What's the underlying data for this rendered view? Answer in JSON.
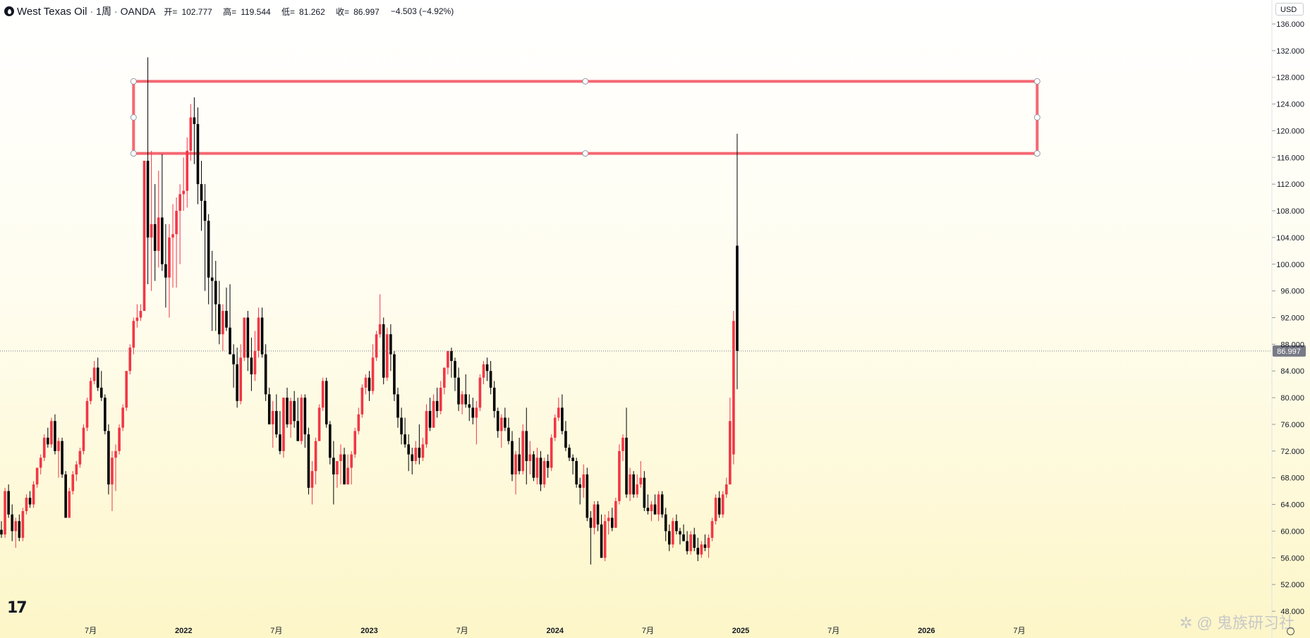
{
  "header": {
    "symbol": "West Texas Oil",
    "interval": "1周",
    "source": "OANDA",
    "open_label": "开=",
    "open": "102.777",
    "high_label": "高=",
    "high": "119.544",
    "low_label": "低=",
    "low": "81.262",
    "close_label": "收=",
    "close": "86.997",
    "change": "−4.503 (−4.92%)"
  },
  "currency": "USD",
  "watermark": "鬼族研习社",
  "brand_logo": "17",
  "colors": {
    "up": "#f23645",
    "down": "#000000",
    "zone": "#f23645",
    "axis_text": "#131722",
    "price_tag": "#787b86"
  },
  "chart_data": {
    "type": "candlestick",
    "interval": "1W",
    "ylim": [
      48,
      138
    ],
    "y_ticks": [
      "136.000",
      "132.000",
      "128.000",
      "124.000",
      "120.000",
      "116.000",
      "112.000",
      "108.000",
      "104.000",
      "100.000",
      "96.000",
      "92.000",
      "88.000",
      "84.000",
      "80.000",
      "76.000",
      "72.000",
      "68.000",
      "64.000",
      "60.000",
      "56.000",
      "52.000",
      "48.000"
    ],
    "x_ticks": [
      {
        "label": "7月",
        "i": 25
      },
      {
        "label": "2022",
        "i": 51
      },
      {
        "label": "7月",
        "i": 77
      },
      {
        "label": "2023",
        "i": 103
      },
      {
        "label": "7月",
        "i": 129
      },
      {
        "label": "2024",
        "i": 155
      },
      {
        "label": "7月",
        "i": 181
      },
      {
        "label": "2025",
        "i": 207
      },
      {
        "label": "7月",
        "i": 233
      },
      {
        "label": "2026",
        "i": 259
      },
      {
        "label": "7月",
        "i": 285
      }
    ],
    "last_price_label": "86.997",
    "last_price": 86.997,
    "resistance_zone": {
      "top": 127.4,
      "bottom": 116.6,
      "start_i": 37,
      "end_i": 290
    },
    "candles": [
      [
        60.2,
        61.5,
        59.0,
        59.5
      ],
      [
        59.5,
        66.5,
        59.0,
        66.0
      ],
      [
        66.0,
        67.0,
        62.0,
        62.5
      ],
      [
        62.5,
        64.0,
        58.5,
        60.0
      ],
      [
        60.0,
        62.0,
        57.5,
        61.5
      ],
      [
        61.5,
        62.5,
        58.5,
        59.0
      ],
      [
        59.0,
        63.5,
        58.5,
        63.0
      ],
      [
        63.0,
        65.5,
        62.5,
        65.0
      ],
      [
        65.0,
        66.0,
        63.5,
        64.0
      ],
      [
        64.0,
        67.5,
        63.5,
        67.0
      ],
      [
        67.0,
        69.5,
        66.5,
        69.5
      ],
      [
        69.5,
        71.5,
        68.5,
        71.0
      ],
      [
        71.0,
        74.5,
        70.5,
        74.0
      ],
      [
        74.0,
        75.5,
        72.5,
        73.0
      ],
      [
        73.0,
        77.0,
        72.5,
        76.5
      ],
      [
        76.5,
        77.5,
        71.5,
        72.0
      ],
      [
        72.0,
        74.0,
        68.0,
        73.5
      ],
      [
        73.5,
        74.0,
        68.0,
        68.5
      ],
      [
        68.5,
        69.0,
        62.0,
        62.0
      ],
      [
        62.0,
        66.5,
        62.0,
        66.0
      ],
      [
        66.0,
        69.0,
        65.5,
        68.5
      ],
      [
        68.5,
        70.5,
        67.5,
        70.0
      ],
      [
        70.0,
        72.5,
        69.5,
        72.0
      ],
      [
        72.0,
        76.0,
        71.5,
        75.5
      ],
      [
        75.5,
        80.0,
        75.0,
        79.5
      ],
      [
        79.5,
        83.0,
        79.0,
        82.5
      ],
      [
        82.5,
        85.5,
        82.0,
        84.5
      ],
      [
        84.5,
        86.0,
        81.0,
        81.5
      ],
      [
        81.5,
        84.0,
        79.5,
        80.0
      ],
      [
        80.0,
        80.5,
        74.5,
        75.0
      ],
      [
        75.0,
        76.0,
        65.5,
        67.0
      ],
      [
        67.0,
        72.0,
        63.0,
        71.0
      ],
      [
        71.0,
        73.0,
        66.0,
        72.0
      ],
      [
        72.0,
        76.0,
        71.5,
        75.5
      ],
      [
        75.5,
        79.0,
        75.0,
        78.5
      ],
      [
        78.5,
        84.0,
        78.0,
        84.0
      ],
      [
        84.0,
        88.0,
        83.5,
        87.5
      ],
      [
        87.5,
        92.0,
        86.5,
        91.5
      ],
      [
        91.5,
        94.0,
        90.5,
        92.0
      ],
      [
        92.0,
        94.0,
        91.5,
        93.0
      ],
      [
        93.0,
        115.5,
        93.0,
        115.5
      ],
      [
        115.5,
        131.0,
        97.0,
        104.0
      ],
      [
        104.0,
        117.0,
        96.0,
        106.0
      ],
      [
        106.0,
        112.0,
        97.5,
        102.0
      ],
      [
        102.0,
        114.0,
        99.5,
        107.0
      ],
      [
        107.0,
        116.5,
        99.0,
        100.0
      ],
      [
        100.0,
        106.0,
        93.5,
        98.0
      ],
      [
        98.0,
        106.0,
        92.0,
        104.0
      ],
      [
        104.0,
        109.0,
        96.5,
        104.5
      ],
      [
        104.5,
        110.0,
        96.5,
        108.0
      ],
      [
        108.0,
        112.0,
        100.0,
        110.5
      ],
      [
        110.5,
        116.0,
        108.0,
        111.0
      ],
      [
        111.0,
        119.0,
        108.5,
        117.0
      ],
      [
        117.0,
        124.0,
        115.5,
        122.0
      ],
      [
        122.0,
        125.0,
        115.0,
        121.0
      ],
      [
        121.0,
        123.5,
        109.0,
        112.0
      ],
      [
        112.0,
        115.5,
        105.0,
        109.5
      ],
      [
        109.5,
        112.0,
        96.0,
        106.5
      ],
      [
        106.5,
        107.5,
        94.0,
        98.0
      ],
      [
        98.0,
        102.0,
        90.0,
        97.5
      ],
      [
        97.5,
        100.5,
        90.0,
        94.0
      ],
      [
        94.0,
        97.5,
        88.0,
        89.5
      ],
      [
        89.5,
        94.0,
        87.0,
        93.0
      ],
      [
        93.0,
        96.5,
        90.0,
        90.5
      ],
      [
        90.5,
        97.0,
        86.5,
        86.5
      ],
      [
        86.5,
        88.0,
        81.5,
        85.0
      ],
      [
        85.0,
        87.5,
        78.5,
        79.5
      ],
      [
        79.5,
        88.0,
        79.0,
        86.0
      ],
      [
        86.0,
        92.0,
        85.5,
        92.0
      ],
      [
        92.0,
        93.0,
        84.0,
        86.0
      ],
      [
        86.0,
        89.0,
        81.0,
        83.5
      ],
      [
        83.5,
        90.0,
        82.5,
        87.0
      ],
      [
        87.0,
        93.5,
        86.0,
        92.0
      ],
      [
        92.0,
        93.5,
        86.0,
        86.5
      ],
      [
        86.5,
        88.0,
        79.5,
        80.5
      ],
      [
        80.5,
        81.5,
        76.0,
        76.0
      ],
      [
        76.0,
        79.5,
        72.5,
        78.0
      ],
      [
        78.0,
        80.5,
        74.0,
        74.5
      ],
      [
        74.5,
        78.0,
        71.5,
        72.0
      ],
      [
        72.0,
        80.0,
        71.0,
        80.0
      ],
      [
        80.0,
        81.5,
        75.5,
        76.0
      ],
      [
        76.0,
        80.0,
        74.0,
        79.5
      ],
      [
        79.5,
        81.0,
        75.5,
        76.5
      ],
      [
        76.5,
        80.0,
        73.5,
        73.5
      ],
      [
        73.5,
        80.5,
        73.0,
        80.0
      ],
      [
        80.0,
        80.5,
        72.5,
        74.5
      ],
      [
        74.5,
        75.5,
        65.5,
        66.5
      ],
      [
        66.5,
        70.5,
        64.0,
        69.0
      ],
      [
        69.0,
        74.0,
        67.0,
        73.5
      ],
      [
        73.5,
        79.0,
        73.5,
        78.5
      ],
      [
        78.5,
        83.0,
        78.0,
        82.5
      ],
      [
        82.5,
        83.0,
        75.5,
        76.0
      ],
      [
        76.0,
        76.5,
        70.0,
        71.0
      ],
      [
        71.0,
        73.5,
        64.0,
        68.5
      ],
      [
        68.5,
        70.5,
        66.5,
        70.5
      ],
      [
        70.5,
        73.0,
        67.0,
        71.5
      ],
      [
        71.5,
        72.5,
        67.0,
        67.0
      ],
      [
        67.0,
        71.5,
        67.0,
        69.5
      ],
      [
        69.5,
        72.0,
        67.0,
        71.5
      ],
      [
        71.5,
        75.5,
        71.0,
        75.0
      ],
      [
        75.0,
        78.5,
        74.5,
        77.5
      ],
      [
        77.5,
        82.0,
        77.0,
        81.5
      ],
      [
        81.5,
        83.5,
        80.5,
        83.0
      ],
      [
        83.0,
        84.0,
        79.5,
        81.0
      ],
      [
        81.0,
        88.0,
        80.5,
        86.0
      ],
      [
        86.0,
        90.0,
        85.5,
        89.5
      ],
      [
        89.5,
        95.5,
        89.0,
        91.0
      ],
      [
        91.0,
        92.0,
        82.0,
        83.0
      ],
      [
        83.0,
        90.5,
        82.5,
        89.5
      ],
      [
        89.5,
        91.0,
        84.0,
        86.5
      ],
      [
        86.5,
        87.0,
        79.5,
        80.5
      ],
      [
        80.5,
        81.5,
        75.5,
        77.0
      ],
      [
        77.0,
        78.5,
        73.0,
        74.5
      ],
      [
        74.5,
        77.0,
        72.5,
        73.0
      ],
      [
        73.0,
        74.5,
        69.0,
        71.5
      ],
      [
        71.5,
        72.5,
        68.5,
        70.5
      ],
      [
        70.5,
        73.5,
        70.0,
        72.5
      ],
      [
        72.5,
        76.0,
        70.0,
        71.0
      ],
      [
        71.0,
        74.0,
        70.5,
        73.0
      ],
      [
        73.0,
        79.0,
        72.5,
        78.0
      ],
      [
        78.0,
        80.0,
        75.0,
        75.5
      ],
      [
        75.5,
        80.5,
        75.5,
        79.5
      ],
      [
        79.5,
        81.5,
        77.0,
        78.0
      ],
      [
        78.0,
        82.5,
        77.5,
        81.5
      ],
      [
        81.5,
        84.5,
        80.5,
        84.5
      ],
      [
        84.5,
        87.0,
        83.5,
        87.0
      ],
      [
        87.0,
        87.5,
        83.0,
        85.5
      ],
      [
        85.5,
        86.0,
        81.0,
        83.0
      ],
      [
        83.0,
        84.5,
        78.0,
        79.0
      ],
      [
        79.0,
        81.0,
        77.5,
        80.5
      ],
      [
        80.5,
        83.5,
        78.5,
        79.0
      ],
      [
        79.0,
        80.5,
        76.5,
        78.5
      ],
      [
        78.5,
        80.0,
        76.0,
        77.0
      ],
      [
        77.0,
        79.5,
        73.0,
        78.5
      ],
      [
        78.5,
        83.5,
        78.0,
        83.0
      ],
      [
        83.0,
        85.5,
        82.0,
        85.0
      ],
      [
        85.0,
        86.0,
        82.5,
        84.0
      ],
      [
        84.0,
        85.5,
        80.5,
        81.5
      ],
      [
        81.5,
        82.5,
        77.0,
        78.0
      ],
      [
        78.0,
        78.5,
        74.0,
        75.0
      ],
      [
        75.0,
        77.5,
        72.5,
        77.0
      ],
      [
        77.0,
        78.5,
        75.0,
        75.5
      ],
      [
        75.5,
        77.0,
        73.0,
        73.5
      ],
      [
        73.5,
        75.0,
        67.5,
        68.5
      ],
      [
        68.5,
        72.0,
        65.5,
        71.5
      ],
      [
        71.5,
        74.0,
        68.5,
        69.0
      ],
      [
        69.0,
        76.0,
        68.5,
        75.0
      ],
      [
        75.0,
        78.5,
        67.0,
        70.5
      ],
      [
        70.5,
        73.5,
        68.5,
        71.5
      ],
      [
        71.5,
        72.0,
        67.5,
        68.0
      ],
      [
        68.0,
        72.5,
        67.0,
        71.0
      ],
      [
        71.0,
        72.0,
        66.0,
        67.0
      ],
      [
        67.0,
        71.0,
        66.5,
        70.5
      ],
      [
        70.5,
        71.5,
        68.0,
        69.5
      ],
      [
        69.5,
        74.5,
        69.0,
        74.0
      ],
      [
        74.0,
        77.5,
        73.5,
        77.0
      ],
      [
        77.0,
        80.0,
        76.5,
        78.5
      ],
      [
        78.5,
        80.5,
        74.5,
        75.0
      ],
      [
        75.0,
        76.5,
        72.0,
        72.5
      ],
      [
        72.5,
        73.0,
        70.5,
        71.0
      ],
      [
        71.0,
        71.5,
        68.5,
        70.5
      ],
      [
        70.5,
        71.0,
        66.5,
        67.0
      ],
      [
        67.0,
        68.0,
        64.0,
        66.5
      ],
      [
        66.5,
        70.0,
        65.0,
        68.5
      ],
      [
        68.5,
        69.5,
        61.5,
        62.0
      ],
      [
        62.0,
        63.0,
        55.0,
        60.5
      ],
      [
        60.5,
        64.5,
        59.5,
        64.0
      ],
      [
        64.0,
        64.5,
        60.0,
        61.0
      ],
      [
        61.0,
        62.5,
        56.0,
        56.0
      ],
      [
        56.0,
        62.5,
        55.5,
        61.5
      ],
      [
        61.5,
        63.0,
        59.5,
        62.0
      ],
      [
        62.0,
        63.5,
        60.0,
        60.5
      ],
      [
        60.5,
        65.0,
        60.5,
        64.5
      ],
      [
        64.5,
        73.0,
        64.0,
        72.0
      ],
      [
        72.0,
        74.5,
        70.5,
        74.0
      ],
      [
        74.0,
        78.5,
        65.0,
        65.5
      ],
      [
        65.5,
        69.5,
        64.5,
        68.5
      ],
      [
        68.5,
        69.0,
        65.0,
        65.5
      ],
      [
        65.5,
        68.5,
        65.0,
        67.0
      ],
      [
        67.0,
        70.5,
        66.5,
        68.0
      ],
      [
        68.0,
        69.0,
        63.0,
        63.5
      ],
      [
        63.5,
        65.5,
        62.5,
        63.0
      ],
      [
        63.0,
        64.5,
        61.5,
        64.0
      ],
      [
        64.0,
        65.5,
        62.5,
        62.5
      ],
      [
        62.5,
        66.0,
        61.5,
        65.5
      ],
      [
        65.5,
        66.0,
        62.0,
        62.5
      ],
      [
        62.5,
        63.5,
        58.5,
        60.0
      ],
      [
        60.0,
        61.0,
        57.0,
        58.0
      ],
      [
        58.0,
        62.0,
        57.5,
        61.5
      ],
      [
        61.5,
        62.5,
        59.5,
        60.0
      ],
      [
        60.0,
        60.5,
        58.0,
        59.5
      ],
      [
        59.5,
        61.0,
        58.5,
        58.5
      ],
      [
        58.5,
        60.0,
        56.5,
        57.0
      ],
      [
        57.0,
        60.0,
        56.5,
        59.5
      ],
      [
        59.5,
        60.5,
        57.0,
        57.5
      ],
      [
        57.5,
        59.0,
        55.5,
        56.5
      ],
      [
        56.5,
        58.5,
        56.0,
        58.0
      ],
      [
        58.0,
        59.5,
        57.0,
        57.5
      ],
      [
        57.5,
        59.5,
        56.0,
        59.0
      ],
      [
        59.0,
        62.0,
        58.5,
        61.5
      ],
      [
        61.5,
        65.5,
        61.0,
        65.0
      ],
      [
        65.0,
        66.0,
        62.0,
        62.5
      ],
      [
        62.5,
        66.0,
        62.0,
        65.5
      ],
      [
        65.5,
        68.0,
        65.0,
        67.0
      ],
      [
        67.0,
        80.0,
        67.0,
        76.5
      ],
      [
        71.5,
        93.0,
        70.0,
        91.5
      ],
      [
        102.777,
        119.544,
        81.262,
        86.997
      ]
    ]
  }
}
